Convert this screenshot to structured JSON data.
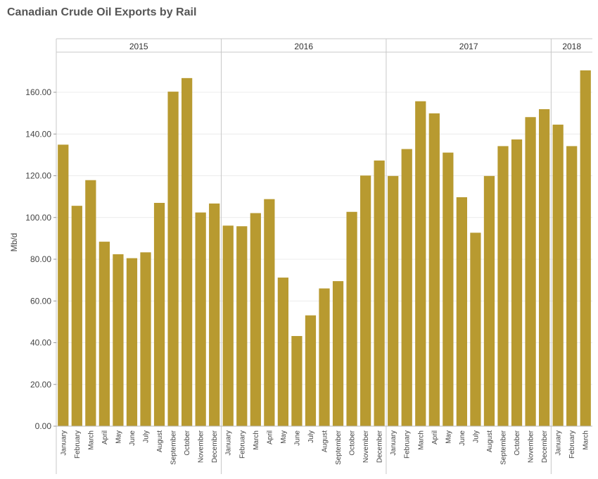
{
  "page": {
    "title": "Canadian Crude Oil Exports by Rail"
  },
  "colors": {
    "bar": "#b89a30",
    "grid": "#ececec",
    "divider": "#c8c8c8"
  },
  "chart_data": {
    "type": "bar",
    "title": "Canadian Crude Oil Exports by Rail",
    "xlabel": "",
    "ylabel": "Mb/d",
    "ylim": [
      0,
      175
    ],
    "yticks": [
      "0.00",
      "20.00",
      "40.00",
      "60.00",
      "80.00",
      "100.00",
      "120.00",
      "140.00",
      "160.00"
    ],
    "grid": true,
    "years": [
      {
        "label": "2015",
        "months": [
          "January",
          "February",
          "March",
          "April",
          "May",
          "June",
          "July",
          "August",
          "September",
          "October",
          "November",
          "December"
        ]
      },
      {
        "label": "2016",
        "months": [
          "January",
          "February",
          "March",
          "April",
          "May",
          "June",
          "July",
          "August",
          "September",
          "October",
          "November",
          "December"
        ]
      },
      {
        "label": "2017",
        "months": [
          "January",
          "February",
          "March",
          "April",
          "May",
          "June",
          "July",
          "August",
          "September",
          "October",
          "November",
          "December"
        ]
      },
      {
        "label": "2018",
        "months": [
          "January",
          "February",
          "March"
        ]
      }
    ],
    "values": [
      134.9,
      105.6,
      117.9,
      88.4,
      82.4,
      80.5,
      83.3,
      107.0,
      160.3,
      166.8,
      102.4,
      106.7,
      96.1,
      95.8,
      102.1,
      108.8,
      71.2,
      43.2,
      53.1,
      66.0,
      69.5,
      102.7,
      120.1,
      127.3,
      119.9,
      132.8,
      155.7,
      149.9,
      131.1,
      109.7,
      92.7,
      119.9,
      134.2,
      137.4,
      148.1,
      151.9,
      144.5,
      134.2,
      170.5
    ]
  }
}
